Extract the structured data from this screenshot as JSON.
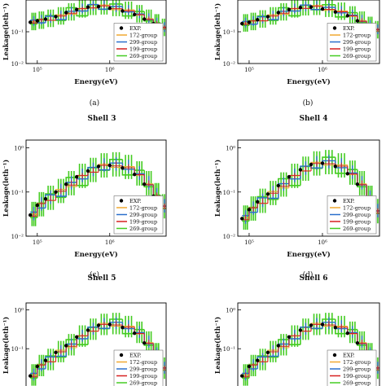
{
  "figure": {
    "captions": [
      "(a)",
      "(b)",
      "(c)",
      "(d)"
    ]
  },
  "legend_colors": {
    "EXP.": "#000000",
    "172-group": "#f0a830",
    "299-group": "#2a6fcc",
    "199-group": "#d62020",
    "269-group": "#44cc22"
  },
  "chart_data": [
    {
      "type": "line",
      "title": "",
      "panel": "a",
      "xlabel": "Energy(eV)",
      "ylabel": "Leakage(leth⁻¹)",
      "xscale": "log",
      "yscale": "log",
      "xlim": [
        70000,
        6000000
      ],
      "ylim": [
        0.01,
        1
      ],
      "x_ticks": [
        "10⁵",
        "10⁶"
      ],
      "y_ticks": [
        "10⁻²",
        "10⁻¹"
      ],
      "series_names": [
        "EXP.",
        "172-group",
        "299-group",
        "199-group",
        "269-group"
      ],
      "x": [
        80000,
        100000,
        130000,
        180000,
        250000,
        350000,
        500000,
        700000,
        1000000,
        1500000,
        2200000,
        3000000,
        4000000,
        5000000
      ],
      "exp": [
        0.2,
        0.22,
        0.25,
        0.3,
        0.4,
        0.5,
        0.6,
        0.62,
        0.55,
        0.45,
        0.35,
        0.25,
        0.18,
        0.13
      ],
      "legend": "lower-right"
    },
    {
      "type": "line",
      "title": "",
      "panel": "b",
      "xlabel": "Energy(eV)",
      "ylabel": "Leakage(leth⁻¹)",
      "xscale": "log",
      "yscale": "log",
      "xlim": [
        70000,
        6000000
      ],
      "ylim": [
        0.01,
        1
      ],
      "x_ticks": [
        "10⁵",
        "10⁶"
      ],
      "y_ticks": [
        "10⁻²",
        "10⁻¹"
      ],
      "series_names": [
        "EXP.",
        "172-group",
        "299-group",
        "199-group",
        "269-group"
      ],
      "x": [
        80000,
        100000,
        130000,
        180000,
        250000,
        350000,
        500000,
        700000,
        1000000,
        1500000,
        2200000,
        3000000,
        4000000,
        5000000
      ],
      "exp": [
        0.18,
        0.2,
        0.24,
        0.3,
        0.4,
        0.5,
        0.58,
        0.6,
        0.52,
        0.42,
        0.32,
        0.22,
        0.15,
        0.11
      ],
      "legend": "lower-right"
    },
    {
      "type": "line",
      "title": "Shell 3",
      "panel": "c",
      "xlabel": "Energy(eV)",
      "ylabel": "Leakage(leth⁻¹)",
      "xscale": "log",
      "yscale": "log",
      "xlim": [
        70000,
        6000000
      ],
      "ylim": [
        0.01,
        1.5
      ],
      "x_ticks": [
        "10⁵",
        "10⁶"
      ],
      "y_ticks": [
        "10⁻²",
        "10⁻¹",
        "10⁰"
      ],
      "series_names": [
        "EXP.",
        "172-group",
        "299-group",
        "199-group",
        "269-group"
      ],
      "x": [
        80000,
        100000,
        130000,
        180000,
        250000,
        350000,
        500000,
        700000,
        1000000,
        1500000,
        2200000,
        3000000,
        4000000,
        5000000
      ],
      "exp": [
        0.03,
        0.05,
        0.07,
        0.1,
        0.15,
        0.22,
        0.3,
        0.38,
        0.4,
        0.35,
        0.25,
        0.15,
        0.08,
        0.045
      ],
      "legend": "lower-right"
    },
    {
      "type": "line",
      "title": "Shell 4",
      "panel": "d",
      "xlabel": "Energy(eV)",
      "ylabel": "Leakage(leth⁻¹)",
      "xscale": "log",
      "yscale": "log",
      "xlim": [
        70000,
        6000000
      ],
      "ylim": [
        0.01,
        1.5
      ],
      "x_ticks": [
        "10⁵",
        "10⁶"
      ],
      "y_ticks": [
        "10⁻²",
        "10⁻¹",
        "10⁰"
      ],
      "series_names": [
        "EXP.",
        "172-group",
        "299-group",
        "199-group",
        "269-group"
      ],
      "x": [
        80000,
        100000,
        130000,
        180000,
        250000,
        350000,
        500000,
        700000,
        1000000,
        1500000,
        2200000,
        3000000,
        4000000,
        5000000
      ],
      "exp": [
        0.025,
        0.04,
        0.06,
        0.09,
        0.14,
        0.22,
        0.32,
        0.42,
        0.45,
        0.38,
        0.26,
        0.15,
        0.07,
        0.035
      ],
      "legend": "lower-right"
    },
    {
      "type": "line",
      "title": "Shell 5",
      "panel": "e",
      "xlabel": "",
      "ylabel": "Leakage(leth⁻¹)",
      "xscale": "log",
      "yscale": "log",
      "xlim": [
        70000,
        6000000
      ],
      "ylim": [
        0.01,
        1.5
      ],
      "x_ticks": [],
      "y_ticks": [
        "10⁻¹",
        "10⁰"
      ],
      "series_names": [
        "EXP.",
        "172-group",
        "299-group",
        "199-group",
        "269-group"
      ],
      "x": [
        80000,
        100000,
        130000,
        180000,
        250000,
        350000,
        500000,
        700000,
        1000000,
        1500000,
        2200000,
        3000000,
        4000000,
        5000000
      ],
      "exp": [
        0.02,
        0.035,
        0.05,
        0.08,
        0.12,
        0.2,
        0.3,
        0.4,
        0.42,
        0.35,
        0.25,
        0.14,
        0.07,
        0.03
      ],
      "legend": "lower-right"
    },
    {
      "type": "line",
      "title": "Shell 6",
      "panel": "f",
      "xlabel": "",
      "ylabel": "Leakage(leth⁻¹)",
      "xscale": "log",
      "yscale": "log",
      "xlim": [
        70000,
        6000000
      ],
      "ylim": [
        0.01,
        1.5
      ],
      "x_ticks": [],
      "y_ticks": [
        "10⁻¹",
        "10⁰"
      ],
      "series_names": [
        "EXP.",
        "172-group",
        "299-group",
        "199-group",
        "269-group"
      ],
      "x": [
        80000,
        100000,
        130000,
        180000,
        250000,
        350000,
        500000,
        700000,
        1000000,
        1500000,
        2200000,
        3000000,
        4000000,
        5000000
      ],
      "exp": [
        0.02,
        0.035,
        0.05,
        0.08,
        0.12,
        0.2,
        0.3,
        0.4,
        0.42,
        0.35,
        0.25,
        0.14,
        0.07,
        0.03
      ],
      "legend": "lower-right"
    }
  ]
}
